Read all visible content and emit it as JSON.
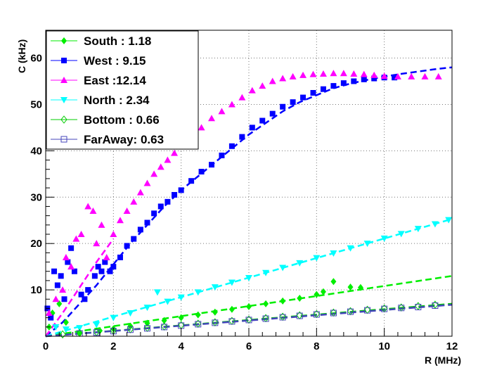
{
  "chart_data": {
    "type": "scatter",
    "title": "",
    "xlabel": "R (MHz)",
    "ylabel": "C (kHz)",
    "xlim": [
      0,
      12
    ],
    "ylim": [
      0,
      66
    ],
    "xticks": [
      "0",
      "2",
      "4",
      "6",
      "8",
      "10",
      "12"
    ],
    "yticks": [
      "10",
      "20",
      "30",
      "40",
      "50",
      "60"
    ],
    "xtick_values": [
      0,
      2,
      4,
      6,
      8,
      10,
      12
    ],
    "ytick_values": [
      10,
      20,
      30,
      40,
      50,
      60
    ],
    "grid": true,
    "legend_position": "top-left",
    "series": [
      {
        "name": "South  : 1.18",
        "color": "#00ee00",
        "marker": "diamond-filled",
        "fit": [
          [
            0,
            0
          ],
          [
            12,
            13
          ]
        ],
        "points": [
          [
            0.1,
            2
          ],
          [
            0.2,
            5
          ],
          [
            0.4,
            7
          ],
          [
            0.6,
            3
          ],
          [
            1.0,
            0.8
          ],
          [
            1.6,
            1.2
          ],
          [
            2.0,
            1.6
          ],
          [
            2.5,
            2.2
          ],
          [
            3.0,
            2.8
          ],
          [
            3.5,
            3.4
          ],
          [
            4.0,
            4.0
          ],
          [
            4.5,
            4.6
          ],
          [
            5.0,
            5.2
          ],
          [
            5.5,
            5.8
          ],
          [
            6.0,
            6.4
          ],
          [
            6.5,
            7.0
          ],
          [
            7.0,
            7.6
          ],
          [
            7.5,
            8.2
          ],
          [
            8.0,
            9.0
          ],
          [
            8.2,
            9.6
          ],
          [
            8.5,
            11.8
          ],
          [
            9.0,
            10.6
          ],
          [
            9.3,
            10.5
          ]
        ]
      },
      {
        "name": "West   : 9.15",
        "color": "#0000ff",
        "marker": "square-filled",
        "fit": [
          [
            0,
            0
          ],
          [
            0.5,
            3
          ],
          [
            1.0,
            7
          ],
          [
            1.5,
            11
          ],
          [
            2.0,
            15.5
          ],
          [
            2.5,
            20
          ],
          [
            3.0,
            24
          ],
          [
            3.5,
            28
          ],
          [
            4.0,
            31.5
          ],
          [
            4.5,
            34.5
          ],
          [
            5.0,
            37.5
          ],
          [
            5.5,
            40.5
          ],
          [
            6.0,
            43.5
          ],
          [
            6.5,
            46
          ],
          [
            7.0,
            48.5
          ],
          [
            7.5,
            50.5
          ],
          [
            8.0,
            52
          ],
          [
            8.5,
            53.5
          ],
          [
            9.0,
            54.5
          ],
          [
            9.5,
            55.3
          ],
          [
            10.0,
            56
          ],
          [
            10.5,
            56.6
          ],
          [
            11.0,
            57.1
          ],
          [
            11.5,
            57.6
          ],
          [
            12.0,
            58
          ]
        ],
        "points": [
          [
            0.05,
            6
          ],
          [
            0.15,
            4
          ],
          [
            0.25,
            14
          ],
          [
            0.35,
            11
          ],
          [
            0.45,
            13
          ],
          [
            0.55,
            8
          ],
          [
            0.65,
            16
          ],
          [
            0.75,
            19
          ],
          [
            0.85,
            14
          ],
          [
            1.05,
            9
          ],
          [
            1.15,
            8
          ],
          [
            1.25,
            10
          ],
          [
            1.45,
            13
          ],
          [
            1.55,
            15
          ],
          [
            1.65,
            14
          ],
          [
            1.75,
            16
          ],
          [
            1.9,
            14
          ],
          [
            2.0,
            15
          ],
          [
            2.2,
            17
          ],
          [
            2.4,
            19.5
          ],
          [
            2.6,
            21
          ],
          [
            2.8,
            23
          ],
          [
            3.0,
            24.5
          ],
          [
            3.2,
            26.5
          ],
          [
            3.4,
            28
          ],
          [
            3.6,
            29
          ],
          [
            3.8,
            30.5
          ],
          [
            4.0,
            31.5
          ],
          [
            4.3,
            33.5
          ],
          [
            4.6,
            35.5
          ],
          [
            4.9,
            37
          ],
          [
            5.2,
            39
          ],
          [
            5.5,
            41
          ],
          [
            5.8,
            43
          ],
          [
            6.1,
            45
          ],
          [
            6.4,
            46.5
          ],
          [
            6.7,
            48
          ],
          [
            7.0,
            49.5
          ],
          [
            7.3,
            50.5
          ],
          [
            7.6,
            51.5
          ],
          [
            7.9,
            52.5
          ],
          [
            8.2,
            53.3
          ],
          [
            8.5,
            54
          ],
          [
            8.8,
            54.6
          ],
          [
            9.1,
            55
          ],
          [
            9.4,
            55.4
          ],
          [
            9.7,
            55.6
          ],
          [
            10.0,
            55.8
          ],
          [
            10.3,
            55.8
          ]
        ]
      },
      {
        "name": "East   :12.14",
        "color": "#ff00ff",
        "marker": "triangle-up-filled",
        "fit": [
          [
            0,
            0
          ],
          [
            0.5,
            5
          ],
          [
            1.0,
            10.5
          ],
          [
            1.5,
            16
          ],
          [
            2.0,
            21
          ]
        ],
        "points": [
          [
            0.1,
            5
          ],
          [
            0.3,
            8
          ],
          [
            0.5,
            10
          ],
          [
            0.6,
            17
          ],
          [
            0.75,
            15
          ],
          [
            0.9,
            21
          ],
          [
            1.05,
            22
          ],
          [
            1.25,
            28
          ],
          [
            1.4,
            27
          ],
          [
            1.5,
            20
          ],
          [
            1.65,
            24
          ],
          [
            1.8,
            17
          ],
          [
            2.0,
            22
          ],
          [
            2.2,
            25
          ],
          [
            2.4,
            27
          ],
          [
            2.6,
            29
          ],
          [
            2.8,
            31
          ],
          [
            3.0,
            33
          ],
          [
            3.2,
            35
          ],
          [
            3.4,
            36.5
          ],
          [
            3.6,
            38
          ],
          [
            3.8,
            39.5
          ],
          [
            4.0,
            41
          ],
          [
            4.3,
            43
          ],
          [
            4.6,
            45
          ],
          [
            4.9,
            47
          ],
          [
            5.2,
            48.5
          ],
          [
            5.5,
            50
          ],
          [
            5.8,
            51.5
          ],
          [
            6.1,
            53
          ],
          [
            6.4,
            54
          ],
          [
            6.7,
            55
          ],
          [
            7.0,
            55.6
          ],
          [
            7.3,
            56
          ],
          [
            7.6,
            56.3
          ],
          [
            7.9,
            56.5
          ],
          [
            8.2,
            56.6
          ],
          [
            8.5,
            56.7
          ],
          [
            8.8,
            56.7
          ],
          [
            9.1,
            56.6
          ],
          [
            9.4,
            56.5
          ],
          [
            9.7,
            56.3
          ],
          [
            10.0,
            56.1
          ],
          [
            10.4,
            56
          ],
          [
            10.8,
            56
          ],
          [
            11.2,
            56
          ],
          [
            11.6,
            56
          ]
        ]
      },
      {
        "name": "North  : 2.34",
        "color": "#00ffff",
        "marker": "triangle-down-filled",
        "fit": [
          [
            0,
            0
          ],
          [
            12,
            25.3
          ]
        ],
        "points": [
          [
            0.3,
            2
          ],
          [
            0.6,
            1.5
          ],
          [
            1.0,
            1.8
          ],
          [
            1.5,
            2.5
          ],
          [
            2.0,
            4
          ],
          [
            2.5,
            5
          ],
          [
            3.0,
            6.2
          ],
          [
            3.3,
            9.5
          ],
          [
            3.6,
            7.5
          ],
          [
            4.0,
            8.4
          ],
          [
            4.5,
            9.5
          ],
          [
            5.0,
            10.6
          ],
          [
            5.5,
            11.6
          ],
          [
            6.0,
            12.6
          ],
          [
            6.5,
            13.7
          ],
          [
            7.0,
            14.8
          ],
          [
            7.5,
            15.8
          ],
          [
            8.0,
            16.9
          ],
          [
            8.5,
            17.9
          ],
          [
            9.0,
            19.0
          ],
          [
            9.5,
            20.0
          ],
          [
            10.0,
            21.1
          ],
          [
            10.5,
            22.1
          ],
          [
            11.0,
            23.2
          ],
          [
            11.5,
            24.2
          ],
          [
            11.9,
            25.1
          ]
        ]
      },
      {
        "name": "Bottom : 0.66",
        "color": "#00cc00",
        "marker": "diamond-open",
        "fit": [
          [
            0,
            0
          ],
          [
            12,
            7
          ]
        ],
        "points": [
          [
            0.5,
            0.4
          ],
          [
            1.0,
            0.7
          ],
          [
            1.5,
            0.9
          ],
          [
            2.0,
            1.2
          ],
          [
            2.5,
            1.5
          ],
          [
            3.0,
            1.8
          ],
          [
            3.5,
            2.1
          ],
          [
            4.0,
            2.4
          ],
          [
            4.5,
            2.7
          ],
          [
            5.0,
            3.0
          ],
          [
            5.5,
            3.3
          ],
          [
            6.0,
            3.6
          ],
          [
            6.5,
            3.9
          ],
          [
            7.0,
            4.2
          ],
          [
            7.5,
            4.5
          ],
          [
            8.0,
            4.8
          ],
          [
            8.5,
            5.1
          ],
          [
            9.0,
            5.4
          ],
          [
            9.5,
            5.7
          ],
          [
            10.0,
            6.0
          ],
          [
            10.5,
            6.2
          ],
          [
            11.0,
            6.5
          ],
          [
            11.5,
            6.8
          ]
        ]
      },
      {
        "name": "FarAway: 0.63",
        "color": "#4444bb",
        "marker": "square-open",
        "fit": [
          [
            0,
            0
          ],
          [
            12,
            6.8
          ]
        ],
        "points": [
          [
            1.0,
            0.6
          ],
          [
            1.5,
            0.8
          ],
          [
            2.0,
            1.1
          ],
          [
            2.5,
            1.4
          ],
          [
            3.0,
            1.7
          ],
          [
            3.5,
            2.0
          ],
          [
            4.0,
            2.3
          ],
          [
            4.5,
            2.6
          ],
          [
            5.0,
            2.9
          ],
          [
            5.5,
            3.2
          ],
          [
            6.0,
            3.5
          ],
          [
            6.5,
            3.8
          ],
          [
            7.0,
            4.1
          ],
          [
            7.5,
            4.4
          ],
          [
            8.0,
            4.7
          ],
          [
            8.5,
            5.0
          ],
          [
            9.0,
            5.3
          ],
          [
            9.5,
            5.6
          ],
          [
            10.0,
            5.9
          ],
          [
            10.5,
            6.1
          ],
          [
            11.0,
            6.3
          ],
          [
            11.5,
            6.6
          ]
        ]
      }
    ]
  }
}
